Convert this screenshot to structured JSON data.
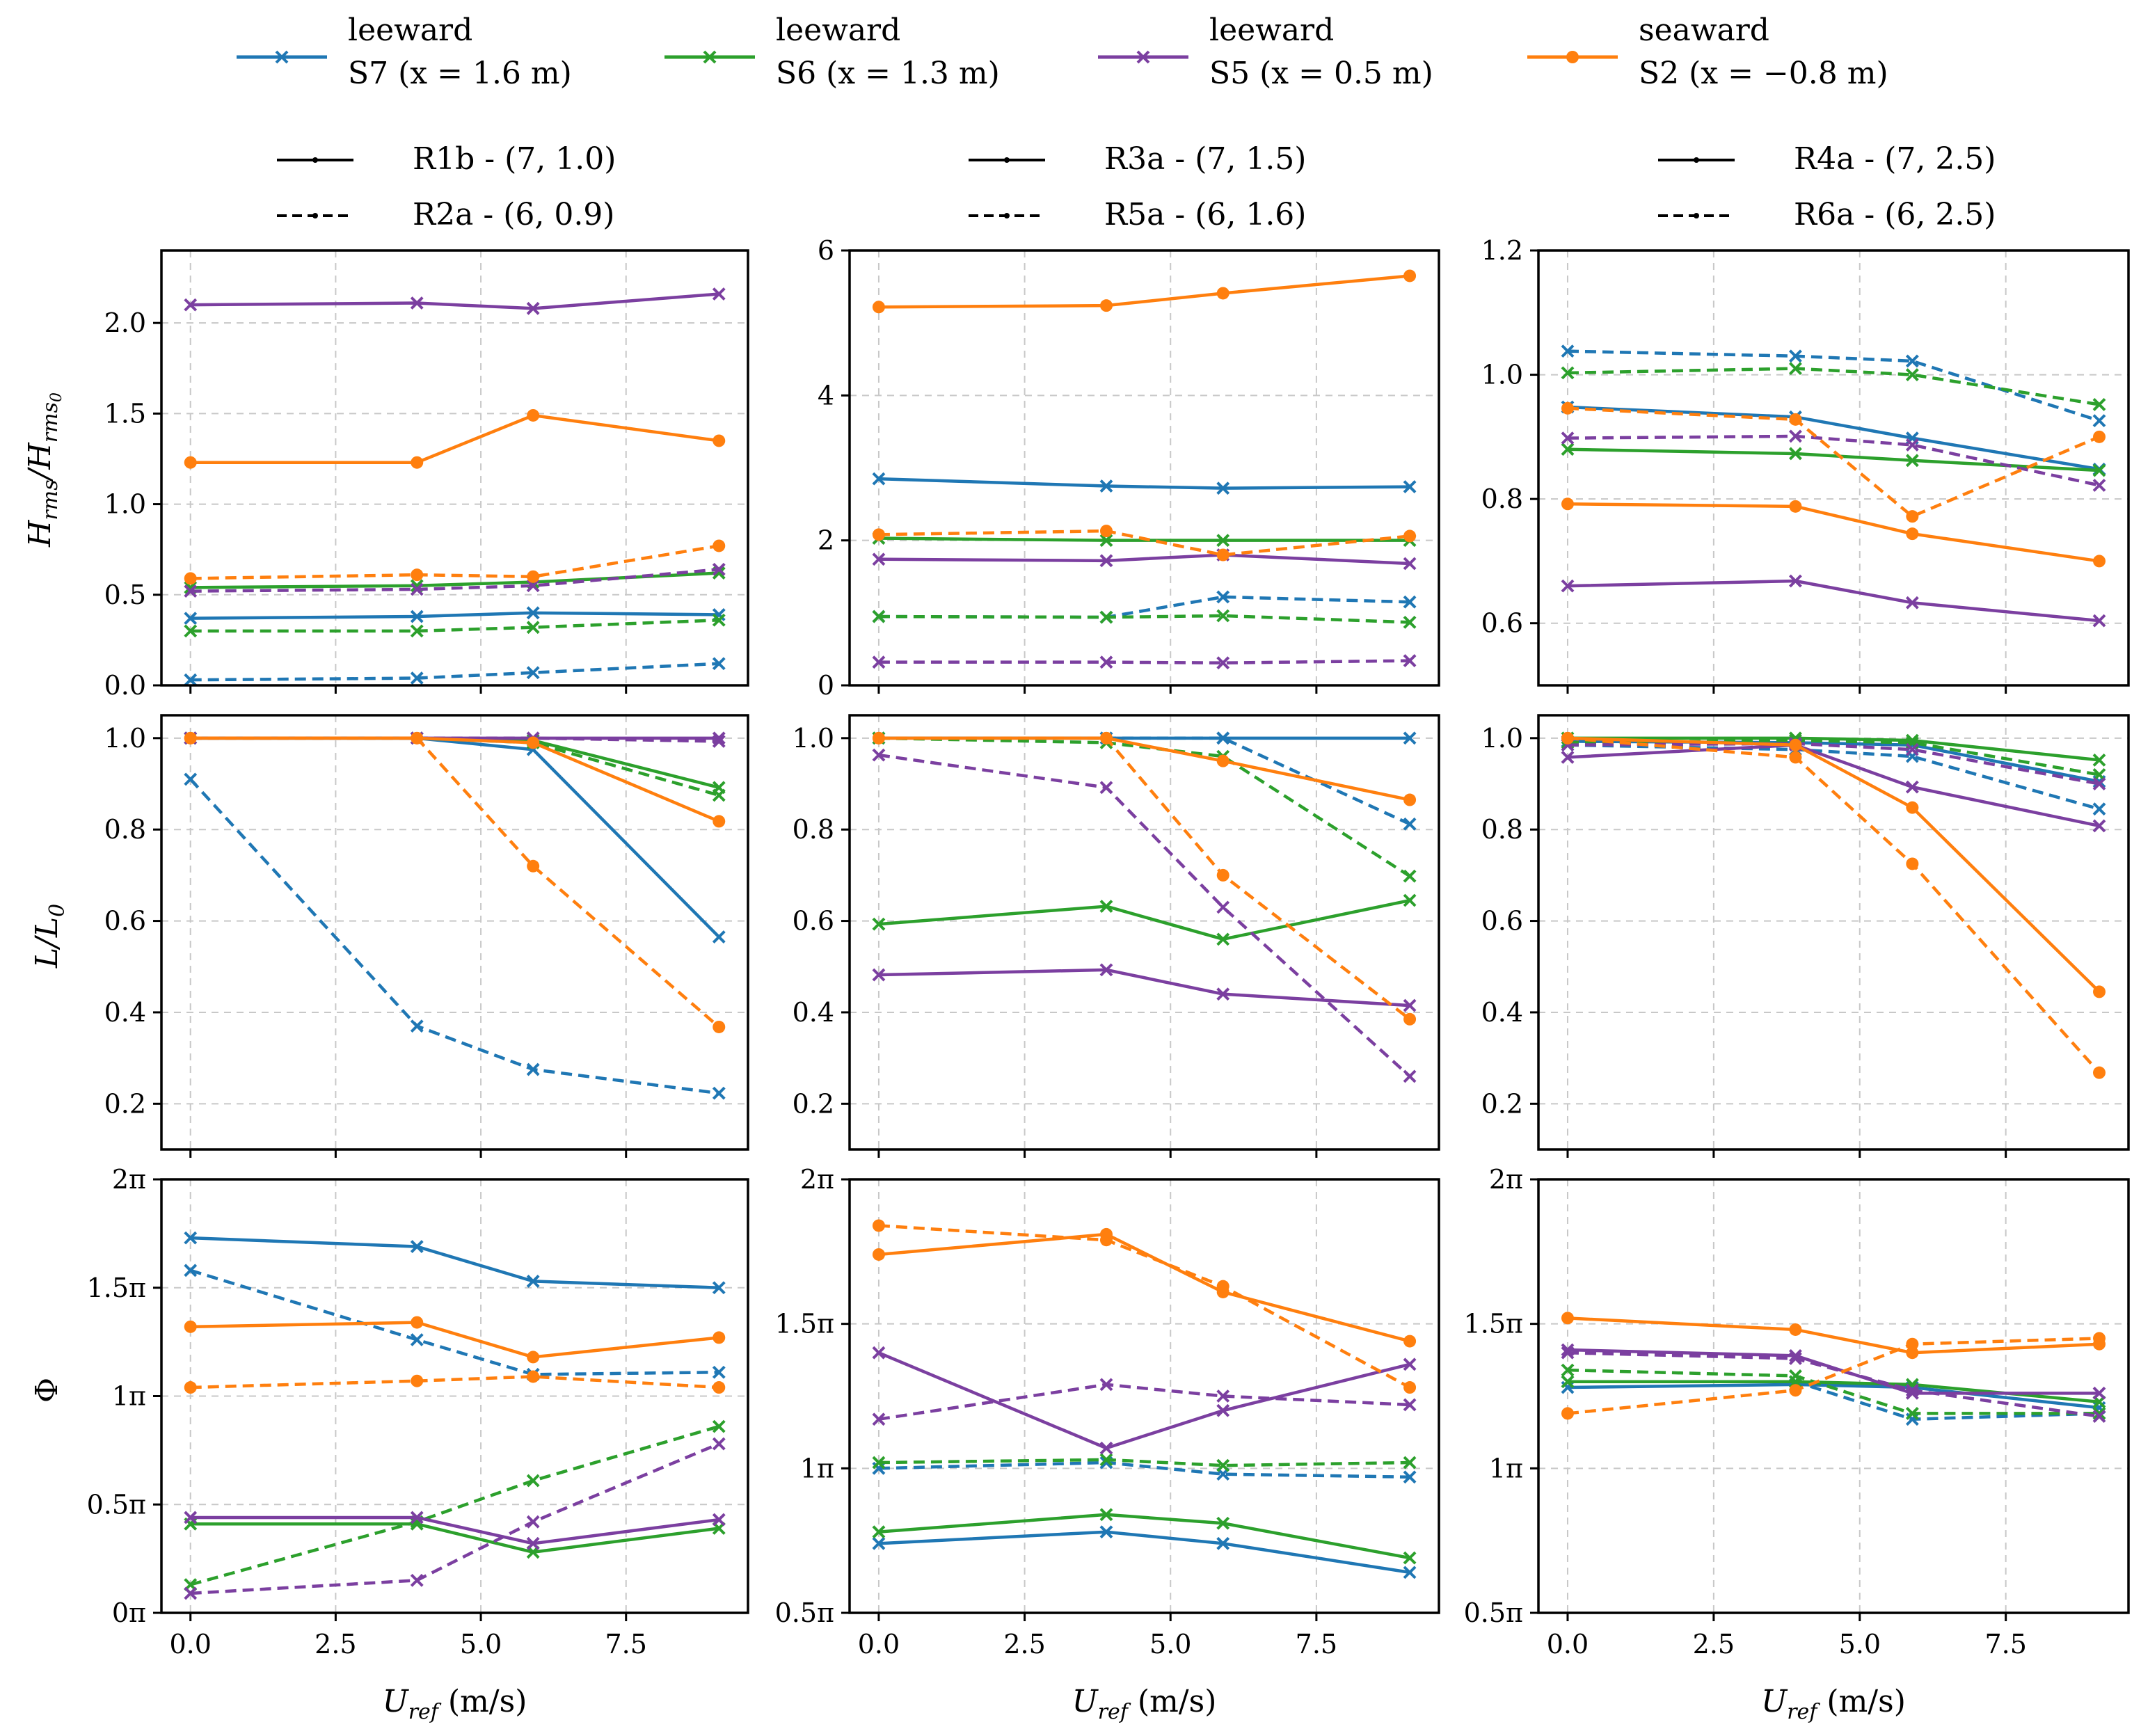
{
  "colors": {
    "S7": "#1f77b4",
    "S6": "#2ca02c",
    "S5": "#7b3fa0",
    "S2": "#ff7f0e"
  },
  "legend": [
    {
      "key": "S7",
      "line1": "leeward",
      "line2": "S7 (x = 1.6 m)",
      "marker": "x"
    },
    {
      "key": "S6",
      "line1": "leeward",
      "line2": "S6 (x = 1.3 m)",
      "marker": "x"
    },
    {
      "key": "S5",
      "line1": "leeward",
      "line2": "S5 (x = 0.5 m)",
      "marker": "x"
    },
    {
      "key": "S2",
      "line1": "seaward",
      "line2": "S2 (x = −0.8 m)",
      "marker": "o"
    }
  ],
  "columns": [
    {
      "solid": "R1b - (7, 1.0)",
      "dashed": "R2a - (6, 0.9)"
    },
    {
      "solid": "R3a - (7, 1.5)",
      "dashed": "R5a - (6, 1.6)"
    },
    {
      "solid": "R4a - (7, 2.5)",
      "dashed": "R6a - (6, 2.5)"
    }
  ],
  "row_labels": [
    "Hrms/Hrms0",
    "L/L0",
    "Φ"
  ],
  "xlabel": "Uref (m/s)",
  "chart_data": {
    "type": "line",
    "x": [
      0.0,
      3.9,
      5.9,
      9.1
    ],
    "xlim": [
      -0.5,
      9.6
    ],
    "xticks": [
      0.0,
      2.5,
      5.0,
      7.5
    ],
    "xtick_labels": [
      "0.0",
      "2.5",
      "5.0",
      "7.5"
    ],
    "panels": [
      {
        "row": 0,
        "col": 0,
        "ylim": [
          0,
          2.4
        ],
        "yticks": [
          0,
          0.5,
          1.0,
          1.5,
          2.0
        ],
        "ytick_labels": [
          "0.0",
          "0.5",
          "1.0",
          "1.5",
          "2.0"
        ],
        "series": [
          {
            "station": "S7",
            "style": "solid",
            "values": [
              0.37,
              0.38,
              0.4,
              0.39
            ]
          },
          {
            "station": "S7",
            "style": "dashed",
            "values": [
              0.03,
              0.04,
              0.07,
              0.12
            ]
          },
          {
            "station": "S6",
            "style": "solid",
            "values": [
              0.54,
              0.55,
              0.57,
              0.62
            ]
          },
          {
            "station": "S6",
            "style": "dashed",
            "values": [
              0.3,
              0.3,
              0.32,
              0.36
            ]
          },
          {
            "station": "S5",
            "style": "solid",
            "values": [
              2.1,
              2.11,
              2.08,
              2.16
            ]
          },
          {
            "station": "S5",
            "style": "dashed",
            "values": [
              0.52,
              0.53,
              0.55,
              0.64
            ]
          },
          {
            "station": "S2",
            "style": "solid",
            "values": [
              1.23,
              1.23,
              1.49,
              1.35
            ]
          },
          {
            "station": "S2",
            "style": "dashed",
            "values": [
              0.59,
              0.61,
              0.6,
              0.77
            ]
          }
        ]
      },
      {
        "row": 0,
        "col": 1,
        "ylim": [
          0,
          6
        ],
        "yticks": [
          0,
          2,
          4,
          6
        ],
        "ytick_labels": [
          "0",
          "2",
          "4",
          "6"
        ],
        "series": [
          {
            "station": "S7",
            "style": "solid",
            "values": [
              2.85,
              2.75,
              2.72,
              2.74
            ]
          },
          {
            "station": "S7",
            "style": "dashed",
            "values": [
              0.95,
              0.94,
              1.22,
              1.15
            ]
          },
          {
            "station": "S6",
            "style": "solid",
            "values": [
              2.03,
              2.0,
              2.0,
              2.0
            ]
          },
          {
            "station": "S6",
            "style": "dashed",
            "values": [
              0.95,
              0.94,
              0.96,
              0.87
            ]
          },
          {
            "station": "S5",
            "style": "solid",
            "values": [
              1.74,
              1.72,
              1.8,
              1.68
            ]
          },
          {
            "station": "S5",
            "style": "dashed",
            "values": [
              0.32,
              0.32,
              0.31,
              0.34
            ]
          },
          {
            "station": "S2",
            "style": "solid",
            "values": [
              5.22,
              5.24,
              5.41,
              5.65
            ]
          },
          {
            "station": "S2",
            "style": "dashed",
            "values": [
              2.08,
              2.13,
              1.8,
              2.06
            ]
          }
        ]
      },
      {
        "row": 0,
        "col": 2,
        "ylim": [
          0.5,
          1.2
        ],
        "yticks": [
          0.6,
          0.8,
          1.0,
          1.2
        ],
        "ytick_labels": [
          "0.6",
          "0.8",
          "1.0",
          "1.2"
        ],
        "series": [
          {
            "station": "S7",
            "style": "solid",
            "values": [
              0.948,
              0.932,
              0.898,
              0.848
            ]
          },
          {
            "station": "S7",
            "style": "dashed",
            "values": [
              1.038,
              1.03,
              1.022,
              0.926
            ]
          },
          {
            "station": "S6",
            "style": "solid",
            "values": [
              0.88,
              0.873,
              0.862,
              0.846
            ]
          },
          {
            "station": "S6",
            "style": "dashed",
            "values": [
              1.003,
              1.01,
              1.0,
              0.952
            ]
          },
          {
            "station": "S5",
            "style": "solid",
            "values": [
              0.66,
              0.668,
              0.633,
              0.604
            ]
          },
          {
            "station": "S5",
            "style": "dashed",
            "values": [
              0.898,
              0.901,
              0.887,
              0.822
            ]
          },
          {
            "station": "S2",
            "style": "solid",
            "values": [
              0.792,
              0.788,
              0.744,
              0.7
            ]
          },
          {
            "station": "S2",
            "style": "dashed",
            "values": [
              0.946,
              0.928,
              0.772,
              0.9
            ]
          }
        ]
      },
      {
        "row": 1,
        "col": 0,
        "ylim": [
          0.1,
          1.05
        ],
        "yticks": [
          0.2,
          0.4,
          0.6,
          0.8,
          1.0
        ],
        "ytick_labels": [
          "0.2",
          "0.4",
          "0.6",
          "0.8",
          "1.0"
        ],
        "series": [
          {
            "station": "S7",
            "style": "solid",
            "values": [
              1.0,
              1.0,
              0.975,
              0.565
            ]
          },
          {
            "station": "S7",
            "style": "dashed",
            "values": [
              0.91,
              0.37,
              0.275,
              0.223
            ]
          },
          {
            "station": "S6",
            "style": "solid",
            "values": [
              1.0,
              1.0,
              0.995,
              0.892
            ]
          },
          {
            "station": "S6",
            "style": "dashed",
            "values": [
              1.0,
              1.0,
              0.99,
              0.875
            ]
          },
          {
            "station": "S5",
            "style": "solid",
            "values": [
              1.0,
              1.0,
              1.0,
              1.0
            ]
          },
          {
            "station": "S5",
            "style": "dashed",
            "values": [
              1.0,
              1.0,
              1.0,
              0.993
            ]
          },
          {
            "station": "S2",
            "style": "solid",
            "values": [
              1.0,
              1.0,
              0.99,
              0.818
            ]
          },
          {
            "station": "S2",
            "style": "dashed",
            "values": [
              1.0,
              1.0,
              0.72,
              0.368
            ]
          }
        ]
      },
      {
        "row": 1,
        "col": 1,
        "ylim": [
          0.1,
          1.05
        ],
        "yticks": [
          0.2,
          0.4,
          0.6,
          0.8,
          1.0
        ],
        "ytick_labels": [
          "0.2",
          "0.4",
          "0.6",
          "0.8",
          "1.0"
        ],
        "series": [
          {
            "station": "S7",
            "style": "solid",
            "values": [
              1.0,
              1.0,
              1.0,
              1.0
            ]
          },
          {
            "station": "S7",
            "style": "dashed",
            "values": [
              1.0,
              1.0,
              1.0,
              0.812
            ]
          },
          {
            "station": "S6",
            "style": "solid",
            "values": [
              0.593,
              0.632,
              0.56,
              0.645
            ]
          },
          {
            "station": "S6",
            "style": "dashed",
            "values": [
              1.0,
              0.99,
              0.96,
              0.698
            ]
          },
          {
            "station": "S5",
            "style": "solid",
            "values": [
              0.482,
              0.493,
              0.44,
              0.415
            ]
          },
          {
            "station": "S5",
            "style": "dashed",
            "values": [
              0.963,
              0.892,
              0.63,
              0.26
            ]
          },
          {
            "station": "S2",
            "style": "solid",
            "values": [
              1.0,
              1.0,
              0.95,
              0.865
            ]
          },
          {
            "station": "S2",
            "style": "dashed",
            "values": [
              1.0,
              1.0,
              0.7,
              0.385
            ]
          }
        ]
      },
      {
        "row": 1,
        "col": 2,
        "ylim": [
          0.1,
          1.05
        ],
        "yticks": [
          0.2,
          0.4,
          0.6,
          0.8,
          1.0
        ],
        "ytick_labels": [
          "0.2",
          "0.4",
          "0.6",
          "0.8",
          "1.0"
        ],
        "series": [
          {
            "station": "S7",
            "style": "solid",
            "values": [
              0.993,
              0.99,
              0.985,
              0.905
            ]
          },
          {
            "station": "S7",
            "style": "dashed",
            "values": [
              0.985,
              0.975,
              0.96,
              0.845
            ]
          },
          {
            "station": "S6",
            "style": "solid",
            "values": [
              1.0,
              1.0,
              0.995,
              0.952
            ]
          },
          {
            "station": "S6",
            "style": "dashed",
            "values": [
              0.99,
              0.995,
              0.99,
              0.92
            ]
          },
          {
            "station": "S5",
            "style": "solid",
            "values": [
              0.958,
              0.985,
              0.893,
              0.808
            ]
          },
          {
            "station": "S5",
            "style": "dashed",
            "values": [
              0.985,
              0.988,
              0.975,
              0.9
            ]
          },
          {
            "station": "S2",
            "style": "solid",
            "values": [
              1.0,
              0.985,
              0.848,
              0.445
            ]
          },
          {
            "station": "S2",
            "style": "dashed",
            "values": [
              1.0,
              0.958,
              0.725,
              0.268
            ]
          }
        ]
      },
      {
        "row": 2,
        "col": 0,
        "ylim": [
          0,
          2
        ],
        "yticks": [
          0,
          0.5,
          1.0,
          1.5,
          2.0
        ],
        "ytick_labels": [
          "0π",
          "0.5π",
          "1π",
          "1.5π",
          "2π"
        ],
        "series": [
          {
            "station": "S7",
            "style": "solid",
            "values": [
              1.73,
              1.69,
              1.53,
              1.5
            ]
          },
          {
            "station": "S7",
            "style": "dashed",
            "values": [
              1.58,
              1.26,
              1.1,
              1.11
            ]
          },
          {
            "station": "S6",
            "style": "solid",
            "values": [
              0.41,
              0.41,
              0.28,
              0.39
            ]
          },
          {
            "station": "S6",
            "style": "dashed",
            "values": [
              0.13,
              0.42,
              0.61,
              0.86
            ]
          },
          {
            "station": "S5",
            "style": "solid",
            "values": [
              0.44,
              0.44,
              0.32,
              0.43
            ]
          },
          {
            "station": "S5",
            "style": "dashed",
            "values": [
              0.09,
              0.15,
              0.42,
              0.78
            ]
          },
          {
            "station": "S2",
            "style": "solid",
            "values": [
              1.32,
              1.34,
              1.18,
              1.27
            ]
          },
          {
            "station": "S2",
            "style": "dashed",
            "values": [
              1.04,
              1.07,
              1.09,
              1.04
            ]
          }
        ]
      },
      {
        "row": 2,
        "col": 1,
        "ylim": [
          0.5,
          2
        ],
        "yticks": [
          0.5,
          1.0,
          1.5,
          2.0
        ],
        "ytick_labels": [
          "0.5π",
          "1π",
          "1.5π",
          "2π"
        ],
        "series": [
          {
            "station": "S7",
            "style": "solid",
            "values": [
              0.74,
              0.78,
              0.74,
              0.64
            ]
          },
          {
            "station": "S7",
            "style": "dashed",
            "values": [
              1.0,
              1.02,
              0.98,
              0.97
            ]
          },
          {
            "station": "S6",
            "style": "solid",
            "values": [
              0.78,
              0.84,
              0.81,
              0.69
            ]
          },
          {
            "station": "S6",
            "style": "dashed",
            "values": [
              1.02,
              1.03,
              1.01,
              1.02
            ]
          },
          {
            "station": "S5",
            "style": "solid",
            "values": [
              1.4,
              1.07,
              1.2,
              1.36
            ]
          },
          {
            "station": "S5",
            "style": "dashed",
            "values": [
              1.17,
              1.29,
              1.25,
              1.22
            ]
          },
          {
            "station": "S2",
            "style": "solid",
            "values": [
              1.74,
              1.81,
              1.61,
              1.44
            ]
          },
          {
            "station": "S2",
            "style": "dashed",
            "values": [
              1.84,
              1.79,
              1.63,
              1.28
            ]
          }
        ]
      },
      {
        "row": 2,
        "col": 2,
        "ylim": [
          0.5,
          2
        ],
        "yticks": [
          0.5,
          1.0,
          1.5,
          2.0
        ],
        "ytick_labels": [
          "0.5π",
          "1π",
          "1.5π",
          "2π"
        ],
        "series": [
          {
            "station": "S7",
            "style": "solid",
            "values": [
              1.28,
              1.29,
              1.28,
              1.21
            ]
          },
          {
            "station": "S7",
            "style": "dashed",
            "values": [
              1.3,
              1.3,
              1.17,
              1.19
            ]
          },
          {
            "station": "S6",
            "style": "solid",
            "values": [
              1.3,
              1.3,
              1.29,
              1.23
            ]
          },
          {
            "station": "S6",
            "style": "dashed",
            "values": [
              1.34,
              1.32,
              1.19,
              1.19
            ]
          },
          {
            "station": "S5",
            "style": "solid",
            "values": [
              1.41,
              1.39,
              1.26,
              1.26
            ]
          },
          {
            "station": "S5",
            "style": "dashed",
            "values": [
              1.4,
              1.38,
              1.27,
              1.18
            ]
          },
          {
            "station": "S2",
            "style": "solid",
            "values": [
              1.52,
              1.48,
              1.4,
              1.43
            ]
          },
          {
            "station": "S2",
            "style": "dashed",
            "values": [
              1.19,
              1.27,
              1.43,
              1.45
            ]
          }
        ]
      }
    ]
  }
}
